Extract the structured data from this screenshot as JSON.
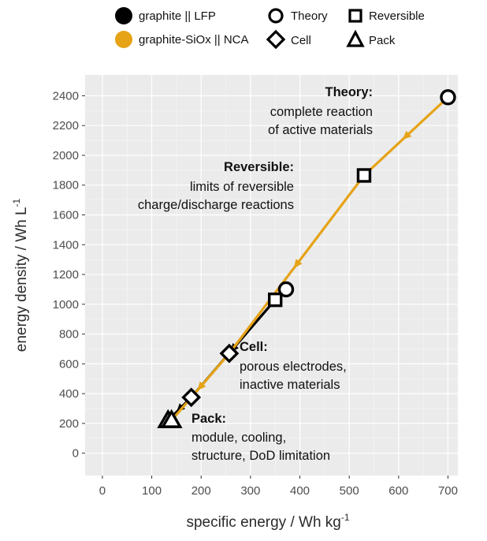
{
  "chart_data": {
    "type": "line",
    "xlabel": "specific energy / Wh kg",
    "xlabel_sup": "-1",
    "ylabel": "energy density / Wh L",
    "ylabel_sup": "-1",
    "xlim": [
      -35,
      720
    ],
    "ylim": [
      -150,
      2540
    ],
    "xticks": [
      0,
      100,
      200,
      300,
      400,
      500,
      600,
      700
    ],
    "yticks": [
      0,
      200,
      400,
      600,
      800,
      1000,
      1200,
      1400,
      1600,
      1800,
      2000,
      2200,
      2400
    ],
    "grid": true,
    "legend_placement": "top",
    "legend": {
      "series": [
        {
          "name": "graphite || LFP",
          "color": "#000000"
        },
        {
          "name": "graphite-SiOx || NCA",
          "color": "#E6A317"
        }
      ],
      "markers": [
        {
          "name": "Theory",
          "shape": "circle"
        },
        {
          "name": "Reversible",
          "shape": "square"
        },
        {
          "name": "Cell",
          "shape": "diamond"
        },
        {
          "name": "Pack",
          "shape": "triangle"
        }
      ]
    },
    "series": [
      {
        "name": "graphite || LFP",
        "color": "#000000",
        "points": [
          {
            "level": "Theory",
            "marker": "circle",
            "x": 372,
            "y": 1100
          },
          {
            "level": "Reversible",
            "marker": "square",
            "x": 350,
            "y": 1030
          },
          {
            "level": "Cell",
            "marker": "diamond",
            "x": 180,
            "y": 375
          },
          {
            "level": "Pack",
            "marker": "triangle",
            "x": 133,
            "y": 220
          }
        ]
      },
      {
        "name": "graphite-SiOx || NCA",
        "color": "#E6A317",
        "points": [
          {
            "level": "Theory",
            "marker": "circle",
            "x": 700,
            "y": 2390
          },
          {
            "level": "Reversible",
            "marker": "square",
            "x": 530,
            "y": 1865
          },
          {
            "level": "Cell",
            "marker": "diamond",
            "x": 257,
            "y": 670
          },
          {
            "level": "Pack",
            "marker": "triangle",
            "x": 140,
            "y": 220
          }
        ]
      }
    ],
    "annotations": [
      {
        "title": "Theory:",
        "lines": [
          "complete reaction",
          "of active materials"
        ]
      },
      {
        "title": "Reversible:",
        "lines": [
          "limits of reversible",
          "charge/discharge reactions"
        ]
      },
      {
        "title": "Cell:",
        "lines": [
          "porous electrodes,",
          "inactive materials"
        ]
      },
      {
        "title": "Pack:",
        "lines": [
          "module, cooling,",
          "structure, DoD limitation"
        ]
      }
    ]
  }
}
